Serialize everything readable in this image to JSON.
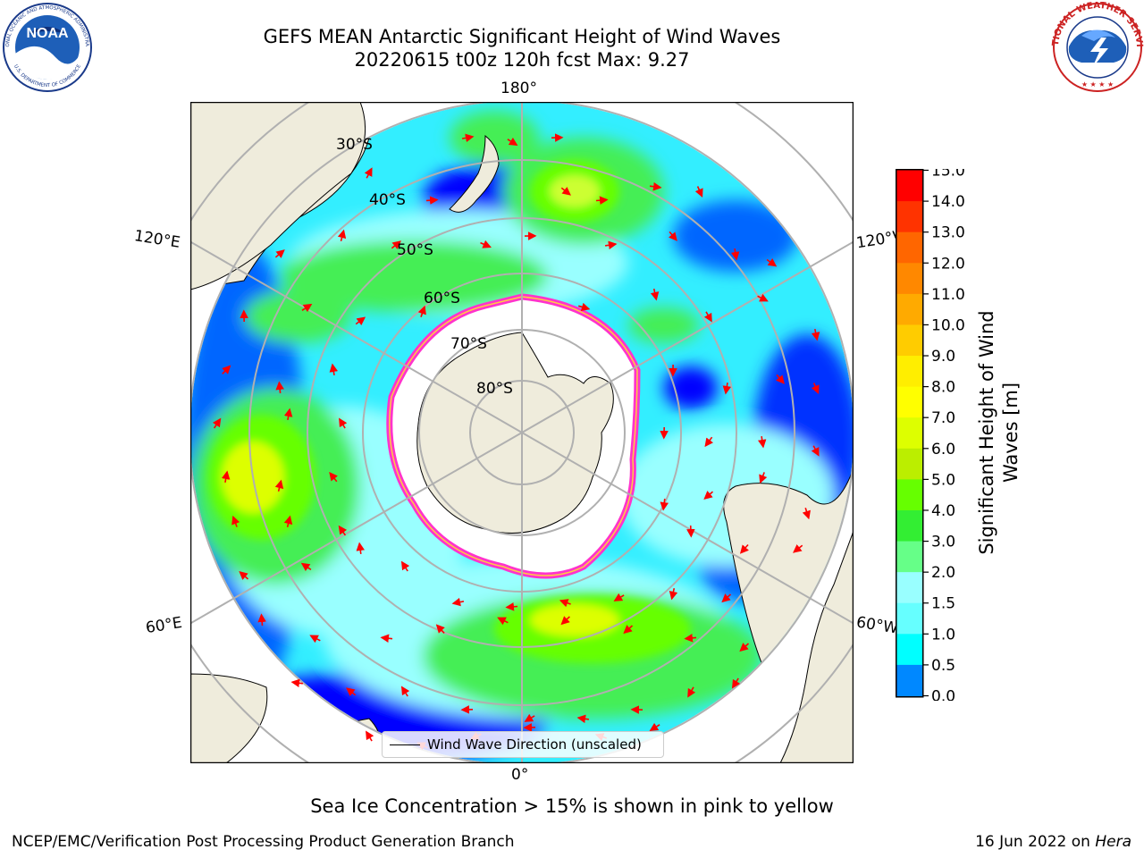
{
  "header": {
    "title_line1": "GEFS MEAN Antarctic Significant Height of Wind Waves",
    "title_line2": "20220615 t00z 120h fcst   Max: 9.27"
  },
  "logos": {
    "noaa_text": "NOAA",
    "noaa_ring_text": "NATIONAL OCEANIC AND ATMOSPHERIC ADMINISTRATION",
    "noaa_ring_bottom": "U.S. DEPARTMENT OF COMMERCE",
    "nws_ring_text": "NATIONAL WEATHER SERVICE"
  },
  "map": {
    "longitude_labels": {
      "top": "180°",
      "bottom": "0°",
      "upper_left": "120°E",
      "lower_left": "60°E",
      "upper_right": "120°W",
      "lower_right": "60°W"
    },
    "latitude_labels": [
      "30°S",
      "40°S",
      "50°S",
      "60°S",
      "70°S",
      "80°S"
    ],
    "legend_label": "Wind Wave Direction (unscaled)",
    "colors": {
      "land": "#efecdc",
      "ice": "#ffffff",
      "ice_edge": "#ff33cc",
      "arrow": "#ff0000",
      "grid": "#b0b0b0"
    }
  },
  "colorbar": {
    "label_line1": "Significant Height of Wind",
    "label_line2": "Waves [m]",
    "ticks": [
      "15.0",
      "14.0",
      "13.0",
      "12.0",
      "11.0",
      "10.0",
      "9.0",
      "8.0",
      "7.0",
      "6.0",
      "5.0",
      "4.0",
      "3.0",
      "2.0",
      "1.5",
      "1.0",
      "0.5",
      "0.0"
    ],
    "colors": [
      "#ff0000",
      "#ff3300",
      "#ff6600",
      "#ff8800",
      "#ffaa00",
      "#ffcc00",
      "#ffee00",
      "#ffff00",
      "#ddff00",
      "#bbee00",
      "#66ff00",
      "#33ee33",
      "#66ff88",
      "#99ffff",
      "#66ffff",
      "#00ffff",
      "#0088ff",
      "#0000ff"
    ]
  },
  "caption": "Sea Ice Concentration > 15% is shown in pink to yellow",
  "footer": {
    "left": "NCEP/EMC/Verification Post Processing Product Generation Branch",
    "right_prefix": "16 Jun 2022 on ",
    "right_italic": "Hera"
  }
}
